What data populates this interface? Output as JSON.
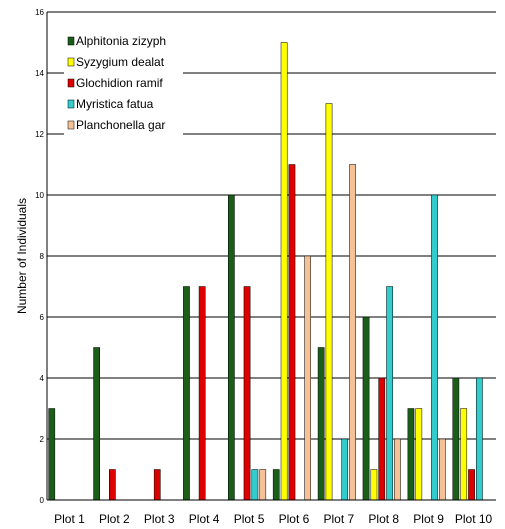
{
  "chart_data": {
    "type": "bar",
    "title": "",
    "xlabel": "",
    "ylabel": "Number of Individuals",
    "ylim": [
      0,
      16
    ],
    "yticks": [
      0,
      2,
      4,
      6,
      8,
      10,
      12,
      14,
      16
    ],
    "grid": true,
    "legend_position": "top-left",
    "categories": [
      "Plot 1",
      "Plot 2",
      "Plot 3",
      "Plot 4",
      "Plot 5",
      "Plot 6",
      "Plot 7",
      "Plot 8",
      "Plot 9",
      "Plot 10"
    ],
    "series": [
      {
        "name": "Alphitonia zizyph",
        "color": "#1a5e1a",
        "values": [
          3,
          5,
          0,
          7,
          10,
          1,
          5,
          6,
          3,
          4
        ]
      },
      {
        "name": "Syzygium dealat",
        "color": "#ffff00",
        "values": [
          0,
          0,
          0,
          0,
          0,
          15,
          13,
          1,
          3,
          3
        ]
      },
      {
        "name": "Glochidion ramif",
        "color": "#dd0000",
        "values": [
          0,
          1,
          1,
          7,
          7,
          11,
          0,
          4,
          0,
          1
        ]
      },
      {
        "name": "Myristica fatua",
        "color": "#33cccc",
        "values": [
          0,
          0,
          0,
          0,
          1,
          0,
          2,
          7,
          10,
          4
        ]
      },
      {
        "name": "Planchonella gar",
        "color": "#f5c298",
        "values": [
          0,
          0,
          0,
          0,
          1,
          8,
          11,
          2,
          2,
          0
        ]
      }
    ]
  }
}
